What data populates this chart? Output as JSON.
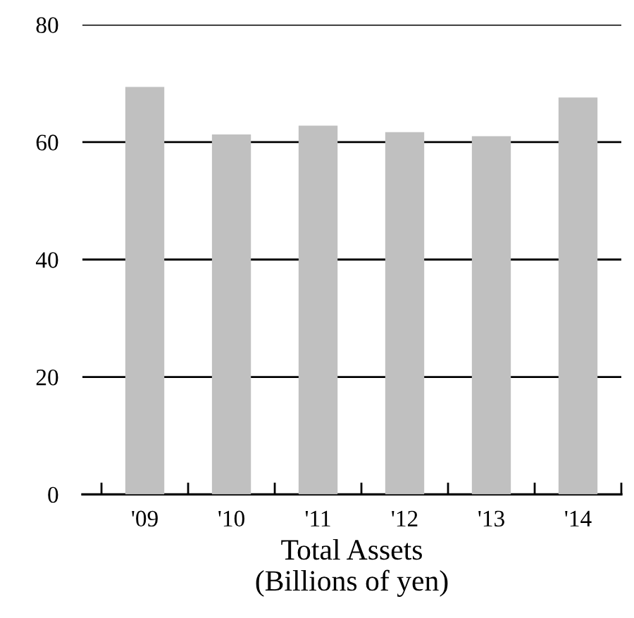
{
  "chart_data": {
    "type": "bar",
    "xlabel": "Total Assets\n(Billions of yen)",
    "categories": [
      "'09",
      "'10",
      "'11",
      "'12",
      "'13",
      "'14"
    ],
    "values": [
      69.4,
      61.3,
      62.8,
      61.7,
      61.0,
      67.6
    ],
    "color": "#c0c0c0",
    "ylim": [
      0,
      80
    ],
    "yticks": [
      0,
      20,
      40,
      60,
      80
    ],
    "grid": "y"
  }
}
